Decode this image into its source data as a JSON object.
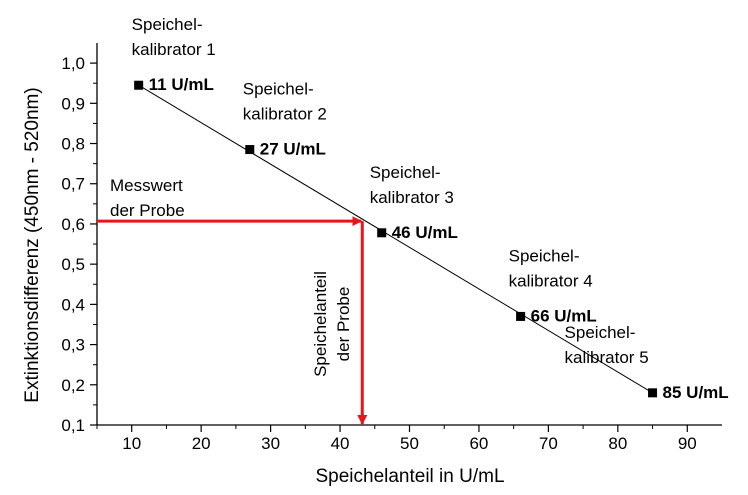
{
  "chart_data": {
    "type": "scatter",
    "title": "",
    "xlabel": "Speichelanteil in U/mL",
    "ylabel": "Extinktionsdifferenz (450nm - 520nm)",
    "xlim": [
      5,
      95
    ],
    "ylim": [
      0.1,
      1.05
    ],
    "x_ticks": [
      10,
      20,
      30,
      40,
      50,
      60,
      70,
      80,
      90
    ],
    "x_tick_labels": [
      "10",
      "20",
      "30",
      "40",
      "50",
      "60",
      "70",
      "80",
      "90"
    ],
    "y_ticks": [
      0.1,
      0.2,
      0.3,
      0.4,
      0.5,
      0.6,
      0.7,
      0.8,
      0.9,
      1.0
    ],
    "y_tick_labels": [
      "0,1",
      "0,2",
      "0,3",
      "0,4",
      "0,5",
      "0,6",
      "0,7",
      "0,8",
      "0,9",
      "1,0"
    ],
    "grid": false,
    "points": [
      {
        "x": 11,
        "y": 0.945,
        "line1": "Speichel-",
        "line2": "kalibrator 1",
        "value": "11 U/mL"
      },
      {
        "x": 27,
        "y": 0.785,
        "line1": "Speichel-",
        "line2": "kalibrator 2",
        "value": "27 U/mL"
      },
      {
        "x": 46,
        "y": 0.578,
        "line1": "Speichel-",
        "line2": "kalibrator 3",
        "value": "46 U/mL"
      },
      {
        "x": 66,
        "y": 0.37,
        "line1": "Speichel-",
        "line2": "kalibrator 4",
        "value": "66 U/mL"
      },
      {
        "x": 85,
        "y": 0.18,
        "line1": "Speichel-",
        "line2": "kalibrator 5",
        "value": "85 U/mL"
      }
    ],
    "fit_line": {
      "x": [
        11,
        85
      ],
      "y": [
        0.945,
        0.18
      ]
    },
    "reading": {
      "measured_y": 0.607,
      "result_x": 43.2,
      "color": "#e8161b",
      "measured_label": [
        "Messwert",
        "der Probe"
      ],
      "result_label": [
        "Speichelanteil",
        "der Probe"
      ]
    }
  }
}
